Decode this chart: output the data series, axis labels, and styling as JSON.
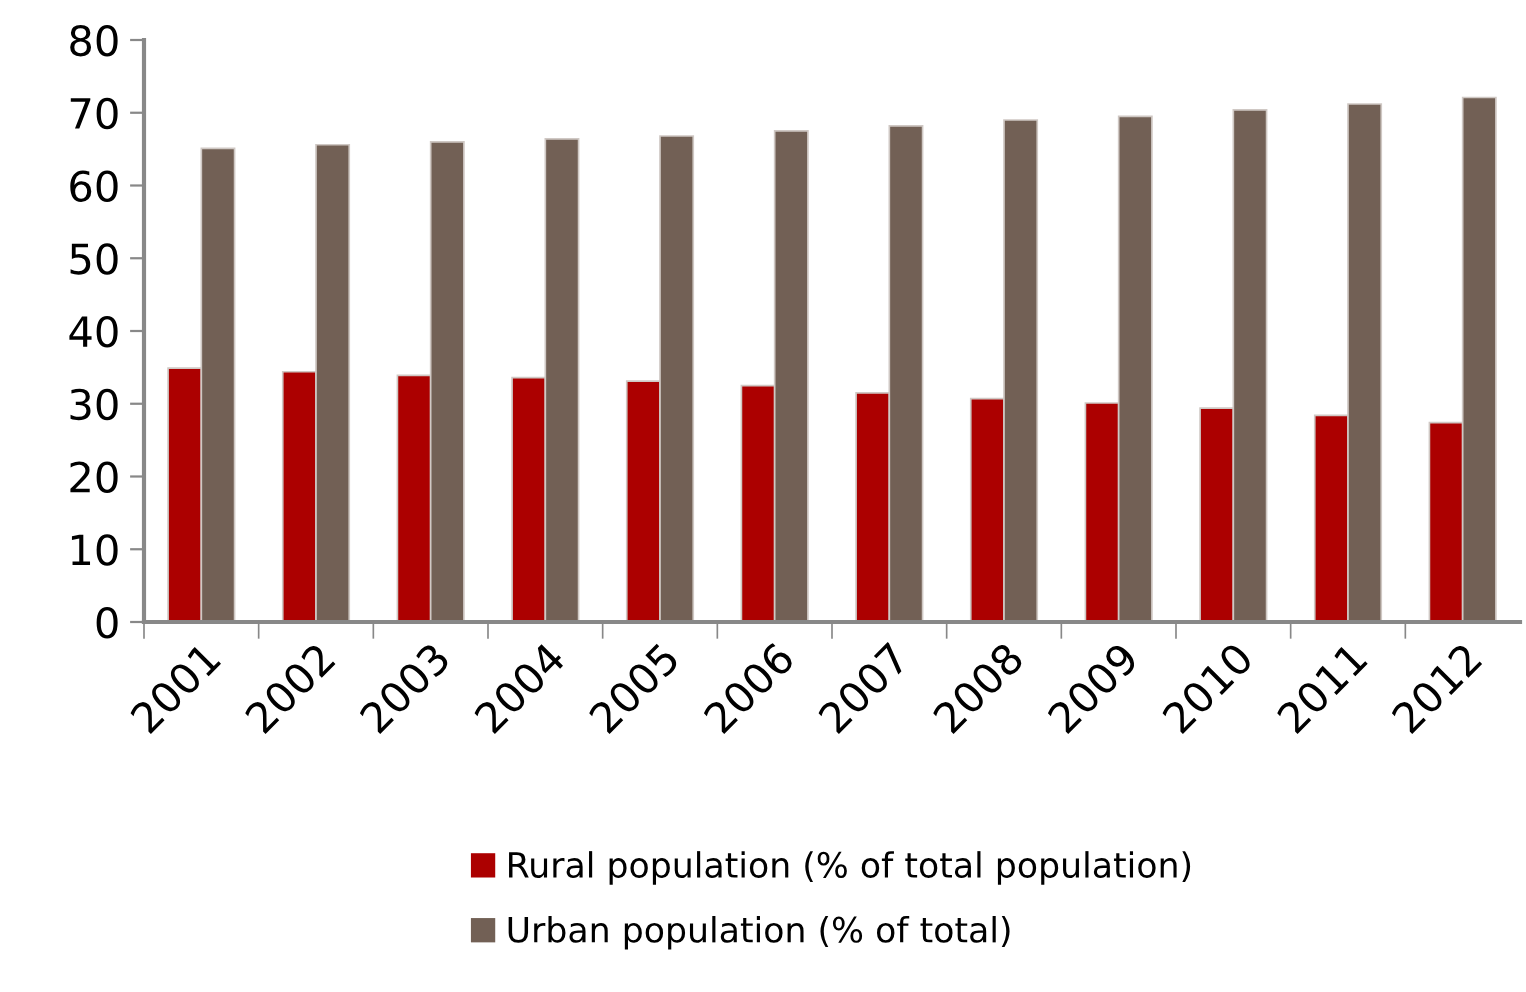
{
  "chart_data": {
    "type": "bar",
    "categories": [
      "2001",
      "2002",
      "2003",
      "2004",
      "2005",
      "2006",
      "2007",
      "2008",
      "2009",
      "2010",
      "2011",
      "2012"
    ],
    "series": [
      {
        "name": "Rural population (% of total population)",
        "color": "#ac0000",
        "values": [
          34.9,
          34.4,
          33.9,
          33.6,
          33.1,
          32.5,
          31.5,
          30.7,
          30.1,
          29.4,
          28.4,
          27.4
        ]
      },
      {
        "name": "Urban population (% of total)",
        "color": "#726055",
        "values": [
          65.1,
          65.6,
          66.0,
          66.4,
          66.8,
          67.5,
          68.2,
          69.0,
          69.5,
          70.4,
          71.2,
          72.1
        ]
      }
    ],
    "ylim": [
      0,
      80
    ],
    "yticks": [
      0,
      10,
      20,
      30,
      40,
      50,
      60,
      70,
      80
    ],
    "grid": false,
    "legend": "bottom"
  }
}
